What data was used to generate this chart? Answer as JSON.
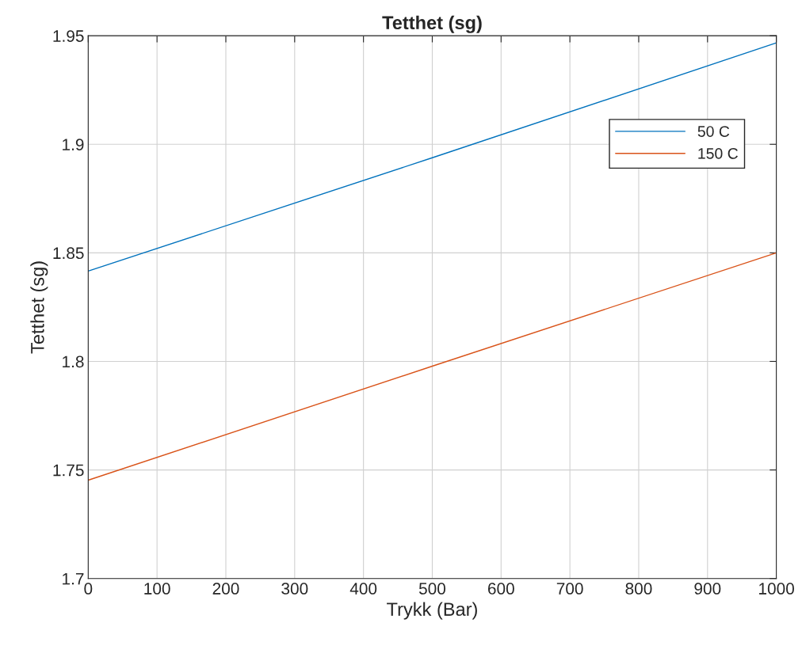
{
  "chart_data": {
    "type": "line",
    "title": "Tetthet (sg)",
    "xlabel": "Trykk (Bar)",
    "ylabel": "Tetthet (sg)",
    "x": [
      0,
      500,
      1000
    ],
    "series": [
      {
        "name": "50 C",
        "color": "#0072bd",
        "values": [
          1.8416,
          1.8938,
          1.9467
        ]
      },
      {
        "name": "150 C",
        "color": "#d95319",
        "values": [
          1.7453,
          1.7978,
          1.85
        ]
      }
    ],
    "xlim": [
      0,
      1000
    ],
    "xticks": [
      0,
      100,
      200,
      300,
      400,
      500,
      600,
      700,
      800,
      900,
      1000
    ],
    "ylim": [
      1.7,
      1.95
    ],
    "yticks": [
      1.7,
      1.75,
      1.8,
      1.85,
      1.9,
      1.95
    ],
    "grid": true,
    "legend": "top right",
    "marker": "none",
    "line_style": "solid"
  }
}
